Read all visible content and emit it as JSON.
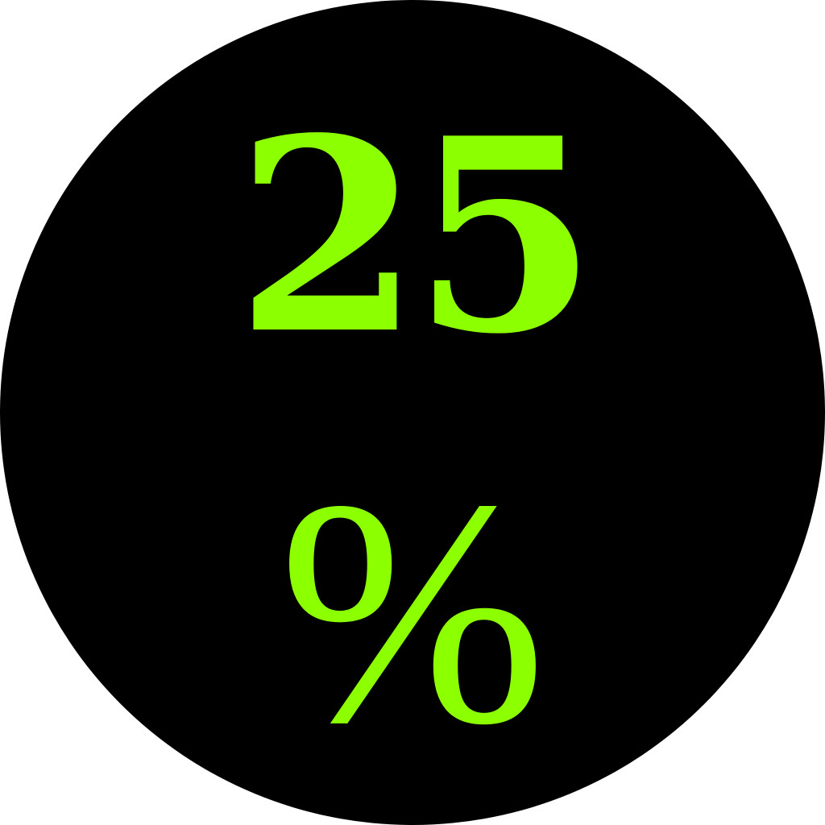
{
  "badge": {
    "value": "25",
    "unit": "%",
    "text_color": "#8cff00",
    "background_color": "#000000"
  }
}
